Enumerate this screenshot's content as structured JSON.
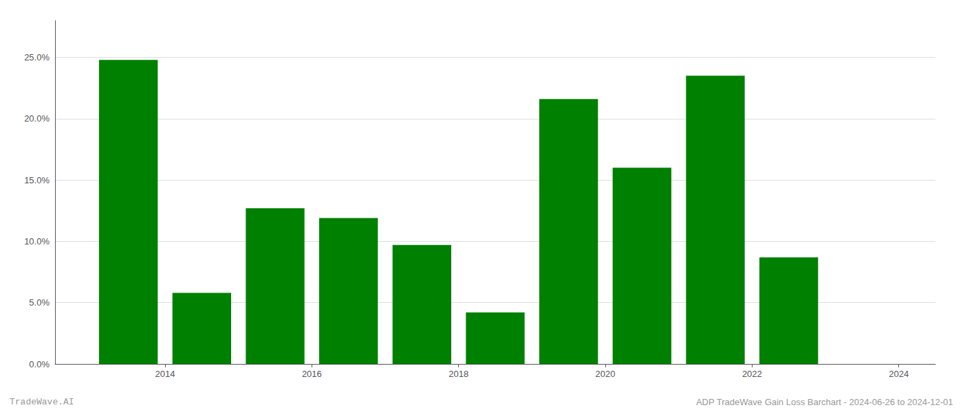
{
  "chart_data": {
    "type": "bar",
    "x": [
      2013.5,
      2014.5,
      2015.5,
      2016.5,
      2017.5,
      2018.5,
      2019.5,
      2020.5,
      2021.5,
      2022.5
    ],
    "values": [
      0.248,
      0.058,
      0.127,
      0.119,
      0.097,
      0.042,
      0.216,
      0.16,
      0.235,
      0.087
    ],
    "color": "#008000",
    "xlim": [
      2012.5,
      2024.5
    ],
    "xticks": [
      2014,
      2016,
      2018,
      2020,
      2022,
      2024
    ],
    "ylim": [
      0.0,
      0.28
    ],
    "yticks": [
      {
        "value": 0.0,
        "label": "0.0%"
      },
      {
        "value": 0.05,
        "label": "5.0%"
      },
      {
        "value": 0.1,
        "label": "10.0%"
      },
      {
        "value": 0.15,
        "label": "15.0%"
      },
      {
        "value": 0.2,
        "label": "20.0%"
      },
      {
        "value": 0.25,
        "label": "25.0%"
      }
    ],
    "grid": true,
    "annotations": [
      "TradeWave.AI",
      "ADP TradeWave Gain Loss Barchart - 2024-06-26 to 2024-12-01"
    ]
  }
}
